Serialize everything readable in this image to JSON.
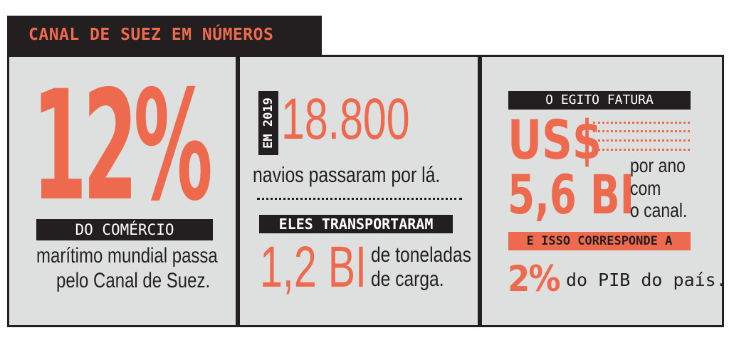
{
  "header": {
    "title": "CANAL DE SUEZ EM NÚMEROS"
  },
  "colors": {
    "accent": "#ee6a4e",
    "dark": "#231f20",
    "panel": "#dde0de"
  },
  "panel1": {
    "big_number": "12%",
    "band": "DO COMÉRCIO",
    "text_line1": "marítimo mundial passa",
    "text_line2": "pelo Canal de Suez."
  },
  "panel2": {
    "year_label": "EM 2019",
    "big_number": "18.800",
    "subtext": "navios passaram por lá.",
    "band": "ELES TRANSPORTARAM",
    "cargo_number": "1,2 BI",
    "cargo_line1": "de toneladas",
    "cargo_line2": "de carga."
  },
  "panel3": {
    "band_top": "O EGITO FATURA",
    "currency": "US$",
    "amount": "5,6 BI",
    "side_line1": "por ano",
    "side_line2": "com",
    "side_line3": "o canal.",
    "band_mid": "E ISSO CORRESPONDE A",
    "percent": "2%",
    "percent_text": "do PIB do país."
  }
}
